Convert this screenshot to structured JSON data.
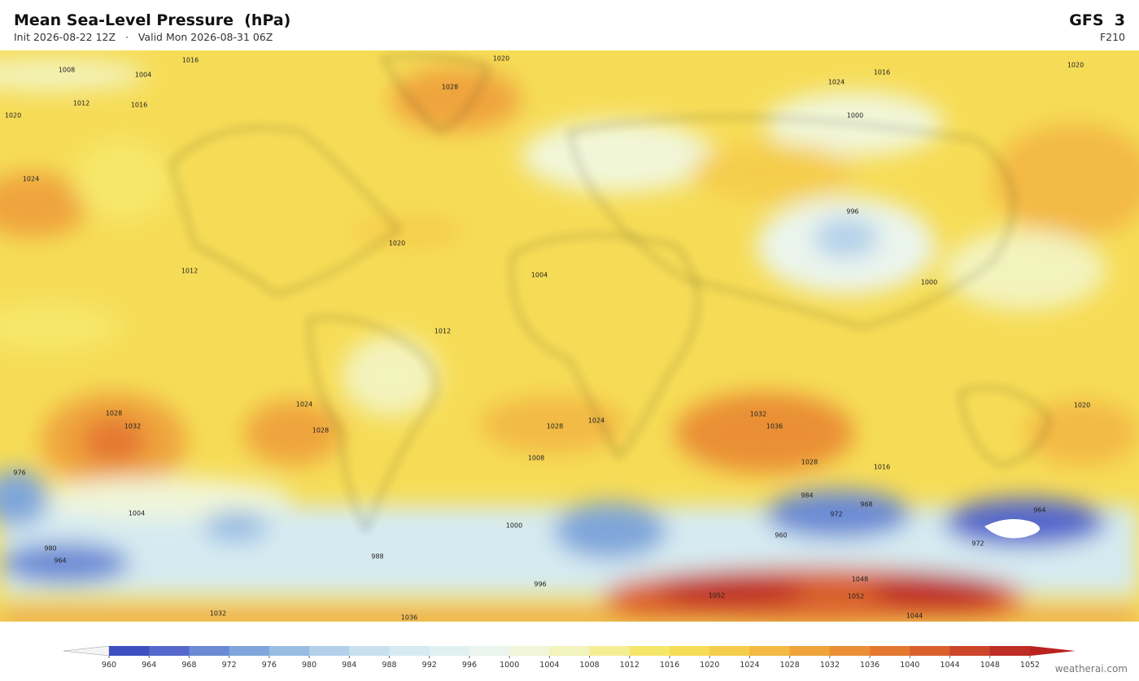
{
  "header": {
    "title": "Mean Sea-Level Pressure  (hPa)",
    "subtitle": "Init 2026-08-22 12Z   ·   Valid Mon 2026-08-31 06Z",
    "model": "GFS  3",
    "forecast_hour": "F210"
  },
  "map": {
    "contour_labels": [
      1016,
      1020,
      1008,
      1004,
      1028,
      1024,
      1012,
      1020,
      1016,
      1000,
      1020,
      1016,
      1024,
      1020,
      1012,
      1004,
      996,
      1000,
      1012,
      1028,
      1032,
      1024,
      1028,
      1036,
      1032,
      1028,
      1024,
      1016,
      1020,
      1008,
      984,
      976,
      964,
      972,
      980,
      1004,
      1000,
      968,
      972,
      964,
      960,
      988,
      996,
      1052,
      1052,
      1048,
      1044,
      1036,
      1032,
      1028
    ]
  },
  "colorbar": {
    "ticks": [
      960,
      964,
      968,
      972,
      976,
      980,
      984,
      988,
      992,
      996,
      1000,
      1004,
      1008,
      1012,
      1016,
      1020,
      1024,
      1028,
      1032,
      1036,
      1040,
      1044,
      1048,
      1052
    ],
    "colors": [
      "#3e4fc1",
      "#5468cc",
      "#6a8ad4",
      "#7fa6da",
      "#98bde3",
      "#b2d0ea",
      "#c8e1ef",
      "#d6ebf1",
      "#e1f1f2",
      "#ebf5ed",
      "#f1f6d8",
      "#f3f3bd",
      "#f5ee94",
      "#f6e76a",
      "#f6dc56",
      "#f5cd4c",
      "#f3b944",
      "#efa43c",
      "#ea8f36",
      "#e47831",
      "#d9602d",
      "#cc452a",
      "#be2d26"
    ],
    "under_color": "#f4f4f4",
    "over_color": "#b8221f"
  },
  "footer": {
    "credit": "weatherai.com"
  }
}
